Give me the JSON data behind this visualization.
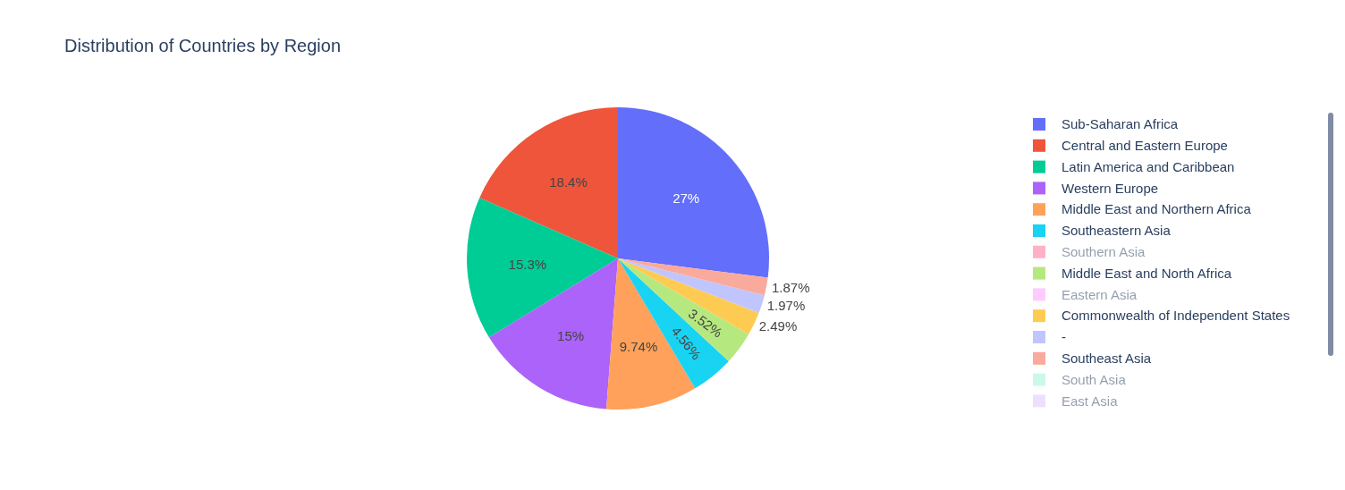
{
  "chart_data": {
    "type": "pie",
    "title": "Distribution of Countries by Region",
    "categories": [
      "Sub-Saharan Africa",
      "Central and Eastern Europe",
      "Latin America and Caribbean",
      "Western Europe",
      "Middle East and Northern Africa",
      "Southeastern Asia",
      "Southern Asia",
      "Middle East and North Africa",
      "Eastern Asia",
      "Commonwealth of Independent States",
      "-",
      "Southeast Asia",
      "South Asia",
      "East Asia"
    ],
    "values": [
      27,
      18.4,
      15.3,
      15,
      9.74,
      4.56,
      null,
      3.52,
      null,
      2.49,
      1.97,
      1.87,
      null,
      null
    ],
    "colors": [
      "#636efa",
      "#ef553b",
      "#00cc96",
      "#ab63fa",
      "#ffa15a",
      "#19d3f3",
      "#ff6692",
      "#b6e880",
      "#ff97ff",
      "#fecb52",
      "#c1c5fd",
      "#f9aa9d",
      "#99f5d5",
      "#ddc1fd"
    ],
    "value_labels": [
      "27%",
      "18.4%",
      "15.3%",
      "15%",
      "9.74%",
      "4.56%",
      null,
      "3.52%",
      null,
      "2.49%",
      "1.97%",
      "1.87%",
      null,
      null
    ],
    "legend": "right"
  }
}
